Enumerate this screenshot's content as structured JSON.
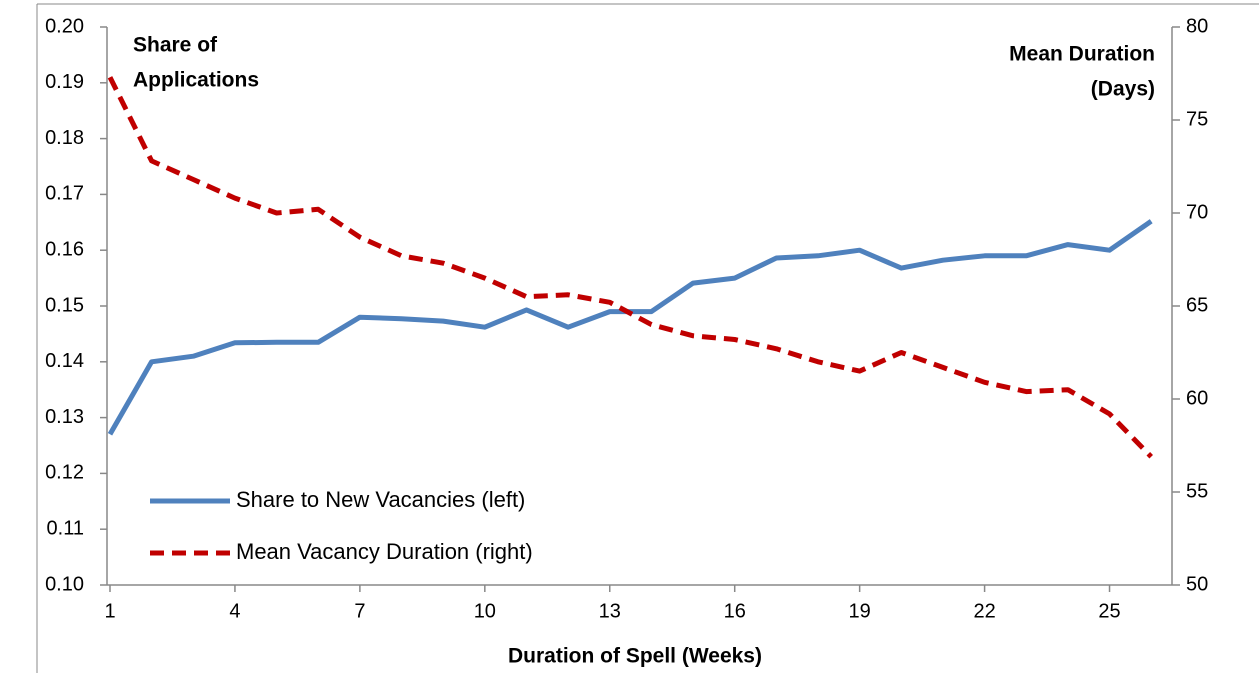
{
  "chart_data": {
    "type": "line",
    "x_label": "Duration of Spell (Weeks)",
    "y_label": [
      "Share of",
      "Applications"
    ],
    "y2_label": [
      "Mean Duration",
      "(Days)"
    ],
    "x": [
      1,
      2,
      3,
      4,
      5,
      6,
      7,
      8,
      9,
      10,
      11,
      12,
      13,
      14,
      15,
      16,
      17,
      18,
      19,
      20,
      21,
      22,
      23,
      24,
      25,
      26
    ],
    "xlim": [
      1,
      26.5
    ],
    "xticks": [
      1,
      4,
      7,
      10,
      13,
      16,
      19,
      22,
      25
    ],
    "ylim": [
      0.1,
      0.2
    ],
    "yticks": [
      {
        "value": 0.1,
        "label": "0.10"
      },
      0.11,
      0.12,
      0.13,
      0.14,
      0.15,
      0.16,
      0.17,
      0.18,
      0.19,
      {
        "value": 0.2,
        "label": "0.20"
      }
    ],
    "y2lim": [
      50,
      80
    ],
    "y2ticks": [
      50,
      55,
      60,
      65,
      70,
      75,
      80
    ],
    "legend": "lower left",
    "series": [
      {
        "name": "Share to New Vacancies (left)",
        "color": "#4f81bd",
        "dash": false,
        "values": [
          0.127,
          0.14,
          0.141,
          0.1434,
          0.1435,
          0.1435,
          0.148,
          0.1477,
          0.1473,
          0.1462,
          0.1493,
          0.1462,
          0.149,
          0.149,
          0.1541,
          0.155,
          0.1586,
          0.159,
          0.16,
          0.1568,
          0.1582,
          0.159,
          0.159,
          0.161,
          0.16,
          0.1652
        ]
      },
      {
        "name": "Mean Vacancy Duration (right)",
        "color": "#c00000",
        "dash": true,
        "axis": "y2",
        "values": [
          77.3,
          72.8,
          71.8,
          70.8,
          70.0,
          70.2,
          68.7,
          67.7,
          67.3,
          66.5,
          65.5,
          65.6,
          65.2,
          64.0,
          63.4,
          63.2,
          62.7,
          62.0,
          61.5,
          62.5,
          61.7,
          60.9,
          60.4,
          60.5,
          59.2,
          56.9
        ]
      }
    ]
  }
}
